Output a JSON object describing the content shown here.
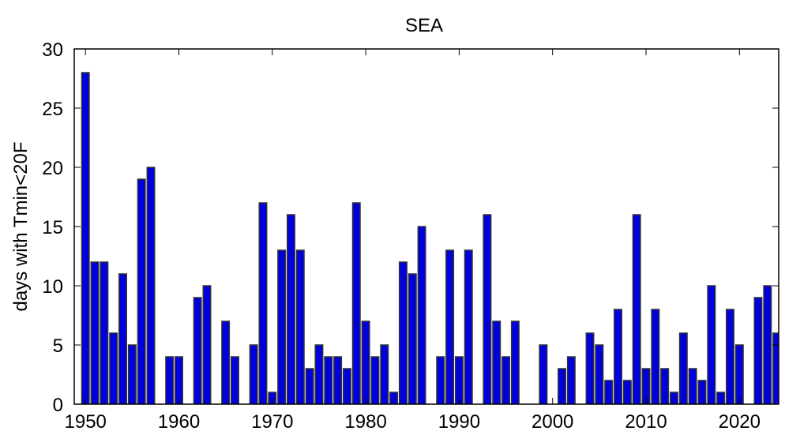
{
  "chart_data": {
    "type": "bar",
    "title": "SEA",
    "xlabel": "",
    "ylabel": "days with Tmin<20F",
    "xlim": [
      1948.8,
      2024.2
    ],
    "ylim": [
      0,
      30
    ],
    "grid": false,
    "xticks": [
      1950,
      1960,
      1970,
      1980,
      1990,
      2000,
      2010,
      2020
    ],
    "yticks": [
      0,
      5,
      10,
      15,
      20,
      25,
      30
    ],
    "bar_color": "#0000dd",
    "edge_color": "#333333",
    "x": [
      1950,
      1951,
      1952,
      1953,
      1954,
      1955,
      1956,
      1957,
      1958,
      1959,
      1960,
      1961,
      1962,
      1963,
      1964,
      1965,
      1966,
      1967,
      1968,
      1969,
      1970,
      1971,
      1972,
      1973,
      1974,
      1975,
      1976,
      1977,
      1978,
      1979,
      1980,
      1981,
      1982,
      1983,
      1984,
      1985,
      1986,
      1987,
      1988,
      1989,
      1990,
      1991,
      1992,
      1993,
      1994,
      1995,
      1996,
      1997,
      1998,
      1999,
      2000,
      2001,
      2002,
      2003,
      2004,
      2005,
      2006,
      2007,
      2008,
      2009,
      2010,
      2011,
      2012,
      2013,
      2014,
      2015,
      2016,
      2017,
      2018,
      2019,
      2020,
      2021,
      2022,
      2023,
      2024
    ],
    "values": [
      28,
      12,
      12,
      6,
      11,
      5,
      19,
      20,
      0,
      4,
      4,
      0,
      9,
      10,
      0,
      7,
      4,
      0,
      5,
      17,
      1,
      13,
      16,
      13,
      3,
      5,
      4,
      4,
      3,
      17,
      7,
      4,
      5,
      1,
      12,
      11,
      15,
      0,
      4,
      13,
      4,
      13,
      0,
      16,
      7,
      4,
      7,
      0,
      0,
      5,
      0,
      3,
      4,
      0,
      6,
      5,
      2,
      8,
      2,
      16,
      3,
      8,
      3,
      1,
      6,
      3,
      2,
      10,
      1,
      8,
      5,
      0,
      9,
      10,
      6
    ]
  }
}
